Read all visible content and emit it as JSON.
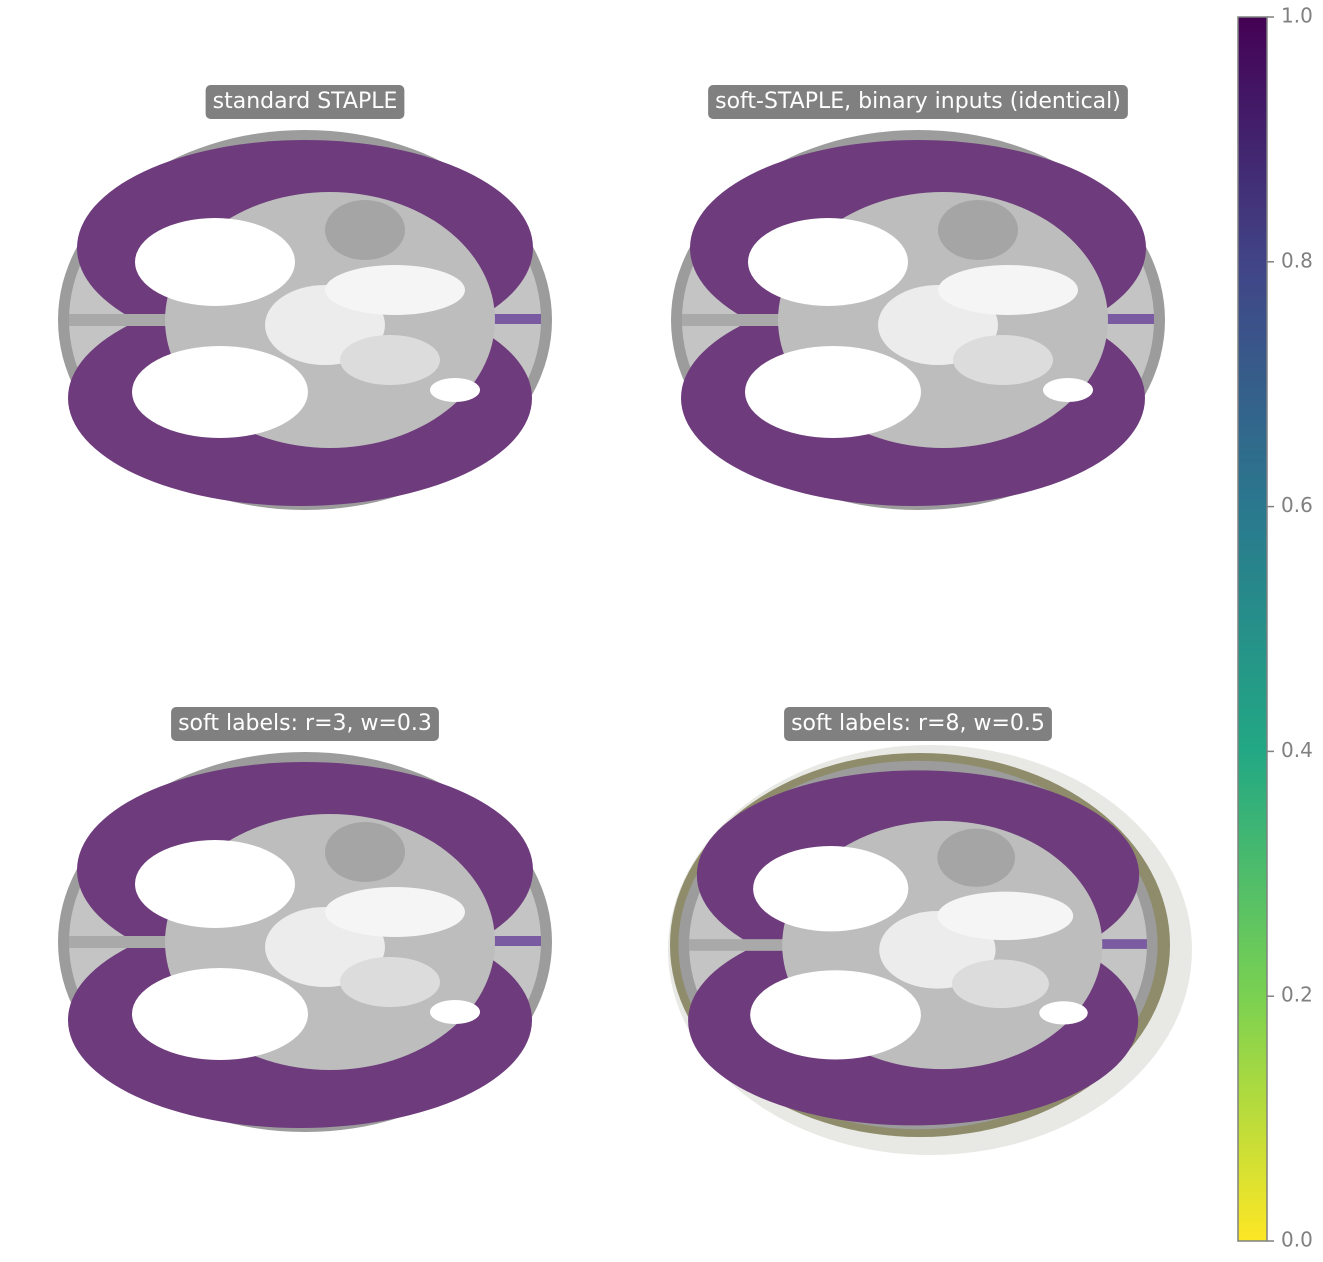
{
  "chart_data": {
    "type": "image-grid",
    "panels": [
      {
        "title": "standard STAPLE"
      },
      {
        "title": "soft-STAPLE, binary inputs (identical)"
      },
      {
        "title": "soft labels: r=3, w=0.3"
      },
      {
        "title": "soft labels: r=8, w=0.5"
      }
    ],
    "colorbar": {
      "ylim": [
        0,
        1
      ],
      "yticks": [
        {
          "value": 0,
          "label": "0.0"
        },
        {
          "value": 0.2,
          "label": "0.2"
        },
        {
          "value": 0.4,
          "label": "0.4"
        },
        {
          "value": 0.6,
          "label": "0.6"
        },
        {
          "value": 0.8,
          "label": "0.8"
        },
        {
          "value": 1,
          "label": "1.0"
        }
      ],
      "colors": [
        "#fde725",
        "#7ad151",
        "#22a884",
        "#2a788e",
        "#414487",
        "#440154"
      ]
    }
  }
}
